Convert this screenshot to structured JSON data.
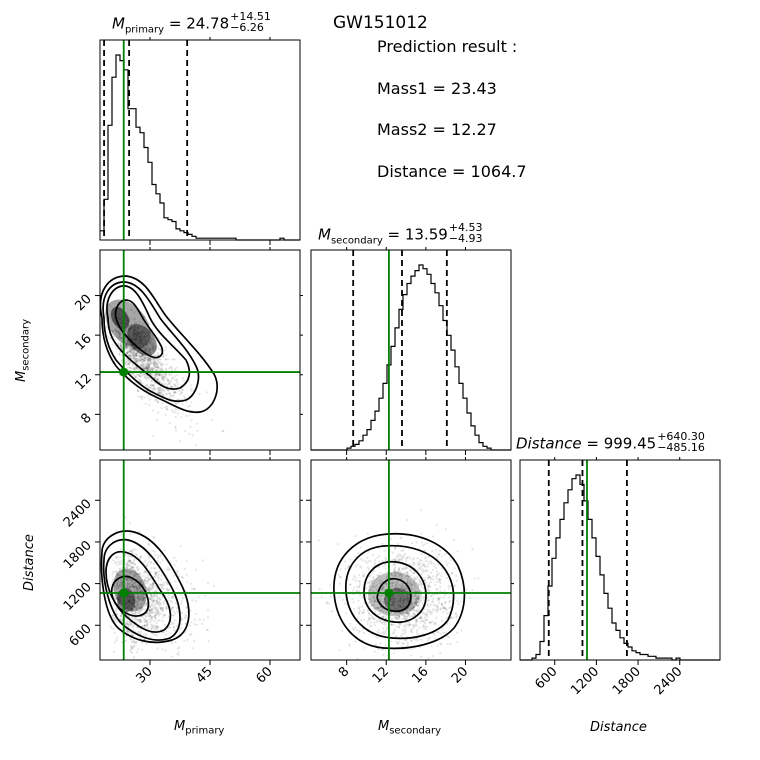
{
  "event": "GW151012",
  "prediction": {
    "header": "Prediction result :",
    "lines": [
      "Mass1 = 23.43",
      "Mass2 = 12.27",
      "Distance = 1064.7"
    ]
  },
  "titles": {
    "primary": {
      "value": "24.78",
      "plus": "+14.51",
      "minus": "−6.26"
    },
    "secondary": {
      "value": "13.59",
      "plus": "+4.53",
      "minus": "−4.93"
    },
    "distance": {
      "value": "999.45",
      "plus": "+640.30",
      "minus": "−485.16"
    }
  },
  "colors": {
    "truth": "#008000",
    "hist": "#000000"
  },
  "chart_data": {
    "type": "corner",
    "parameters": [
      "M_primary",
      "M_secondary",
      "Distance"
    ],
    "truths": {
      "primary": 23.43,
      "secondary": 12.27,
      "distance": 1064.7
    },
    "ranges": {
      "primary": [
        17.5,
        67.5
      ],
      "secondary": [
        4.4,
        24.6
      ],
      "distance": [
        100,
        2980
      ]
    },
    "ticks": {
      "primary": [
        30,
        45,
        60
      ],
      "secondary": [
        8,
        12,
        16,
        20
      ],
      "distance": [
        600,
        1200,
        1800,
        2400
      ]
    },
    "quantiles": {
      "primary": [
        18.52,
        24.78,
        39.29
      ],
      "secondary": [
        8.66,
        13.59,
        18.12
      ],
      "distance": [
        514.29,
        999.45,
        1639.75
      ]
    },
    "hist_primary": {
      "bin_start": 17.5,
      "bin_width": 1.0,
      "counts": [
        5,
        22,
        62,
        88,
        100,
        97,
        92,
        71,
        71,
        61,
        58,
        50,
        42,
        30,
        25,
        20,
        12,
        11,
        10,
        6,
        5,
        4,
        3,
        2,
        1,
        1,
        1,
        1,
        1,
        1,
        1,
        1,
        1,
        1,
        0,
        0,
        0,
        0,
        0,
        0,
        0,
        0,
        0,
        0,
        0,
        1,
        0,
        0,
        0,
        0
      ]
    },
    "hist_secondary": {
      "bin_start": 4.4,
      "bin_width": 0.404,
      "counts": [
        0,
        0,
        0,
        0,
        0,
        0,
        0,
        0,
        0,
        1,
        2,
        3,
        5,
        8,
        11,
        16,
        21,
        28,
        36,
        46,
        56,
        66,
        76,
        84,
        90,
        94,
        97,
        100,
        98,
        95,
        90,
        85,
        78,
        70,
        62,
        54,
        45,
        36,
        28,
        20,
        13,
        8,
        4,
        2,
        1,
        0,
        0,
        0,
        0,
        0
      ]
    },
    "hist_distance": {
      "bin_start": 100,
      "bin_width": 57.6,
      "counts": [
        0,
        0,
        0,
        1,
        3,
        10,
        24,
        40,
        55,
        66,
        76,
        85,
        92,
        98,
        100,
        95,
        86,
        76,
        66,
        56,
        46,
        36,
        28,
        20,
        16,
        12,
        9,
        7,
        5,
        4,
        3,
        3,
        2,
        2,
        1,
        1,
        1,
        1,
        0,
        1,
        0,
        0,
        0,
        0,
        0,
        0,
        0,
        0,
        0,
        0
      ]
    },
    "axis_labels": {
      "primary": "M_primary",
      "secondary": "M_secondary",
      "distance": "Distance"
    }
  }
}
